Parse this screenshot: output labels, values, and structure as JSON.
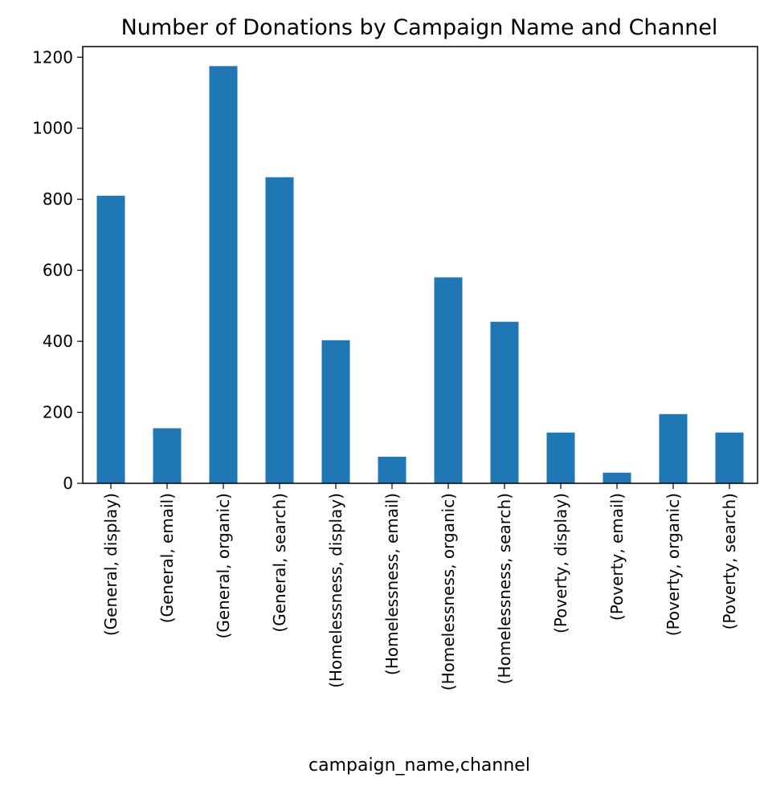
{
  "chart_data": {
    "type": "bar",
    "title": "Number of Donations by Campaign Name and Channel",
    "xlabel": "campaign_name,channel",
    "ylabel": "",
    "categories": [
      "(General, display)",
      "(General, email)",
      "(General, organic)",
      "(General, search)",
      "(Homelessness, display)",
      "(Homelessness, email)",
      "(Homelessness, organic)",
      "(Homelessness, search)",
      "(Poverty, display)",
      "(Poverty, email)",
      "(Poverty, organic)",
      "(Poverty, search)"
    ],
    "values": [
      810,
      155,
      1175,
      862,
      403,
      75,
      580,
      455,
      143,
      30,
      195,
      143
    ],
    "ylim": [
      0,
      1230
    ],
    "yticks": [
      0,
      200,
      400,
      600,
      800,
      1000,
      1200
    ],
    "grid": false,
    "legend": "none",
    "bar_color": "#1f77b4"
  }
}
